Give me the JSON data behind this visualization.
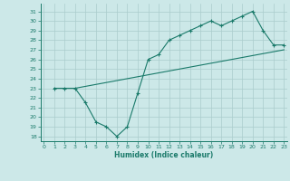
{
  "bg_color": "#cce8e8",
  "line_color": "#1a7a6a",
  "grid_color": "#aacccc",
  "xlabel": "Humidex (Indice chaleur)",
  "ylabel_ticks": [
    18,
    19,
    20,
    21,
    22,
    23,
    24,
    25,
    26,
    27,
    28,
    29,
    30,
    31
  ],
  "xticks": [
    0,
    1,
    2,
    3,
    4,
    5,
    6,
    7,
    8,
    9,
    10,
    11,
    12,
    13,
    14,
    15,
    16,
    17,
    18,
    19,
    20,
    21,
    22,
    23
  ],
  "xlim": [
    -0.3,
    23.3
  ],
  "ylim": [
    17.5,
    31.8
  ],
  "curve1_x": [
    1,
    2,
    3,
    4,
    5,
    6,
    7,
    8,
    9,
    10,
    11,
    12,
    13,
    14,
    15,
    16,
    17,
    18,
    19,
    20,
    21,
    22,
    23
  ],
  "curve1_y": [
    23,
    23,
    23,
    21.5,
    19.5,
    19.0,
    18.0,
    19.0,
    22.5,
    26.0,
    26.5,
    28.0,
    28.5,
    29.0,
    29.5,
    30.0,
    29.5,
    30.0,
    30.5,
    31.0,
    29.0,
    27.5,
    27.5
  ],
  "curve2_x": [
    1,
    3,
    23
  ],
  "curve2_y": [
    23.0,
    23.0,
    27.0
  ],
  "tick_fontsize": 4.5,
  "xlabel_fontsize": 5.5
}
